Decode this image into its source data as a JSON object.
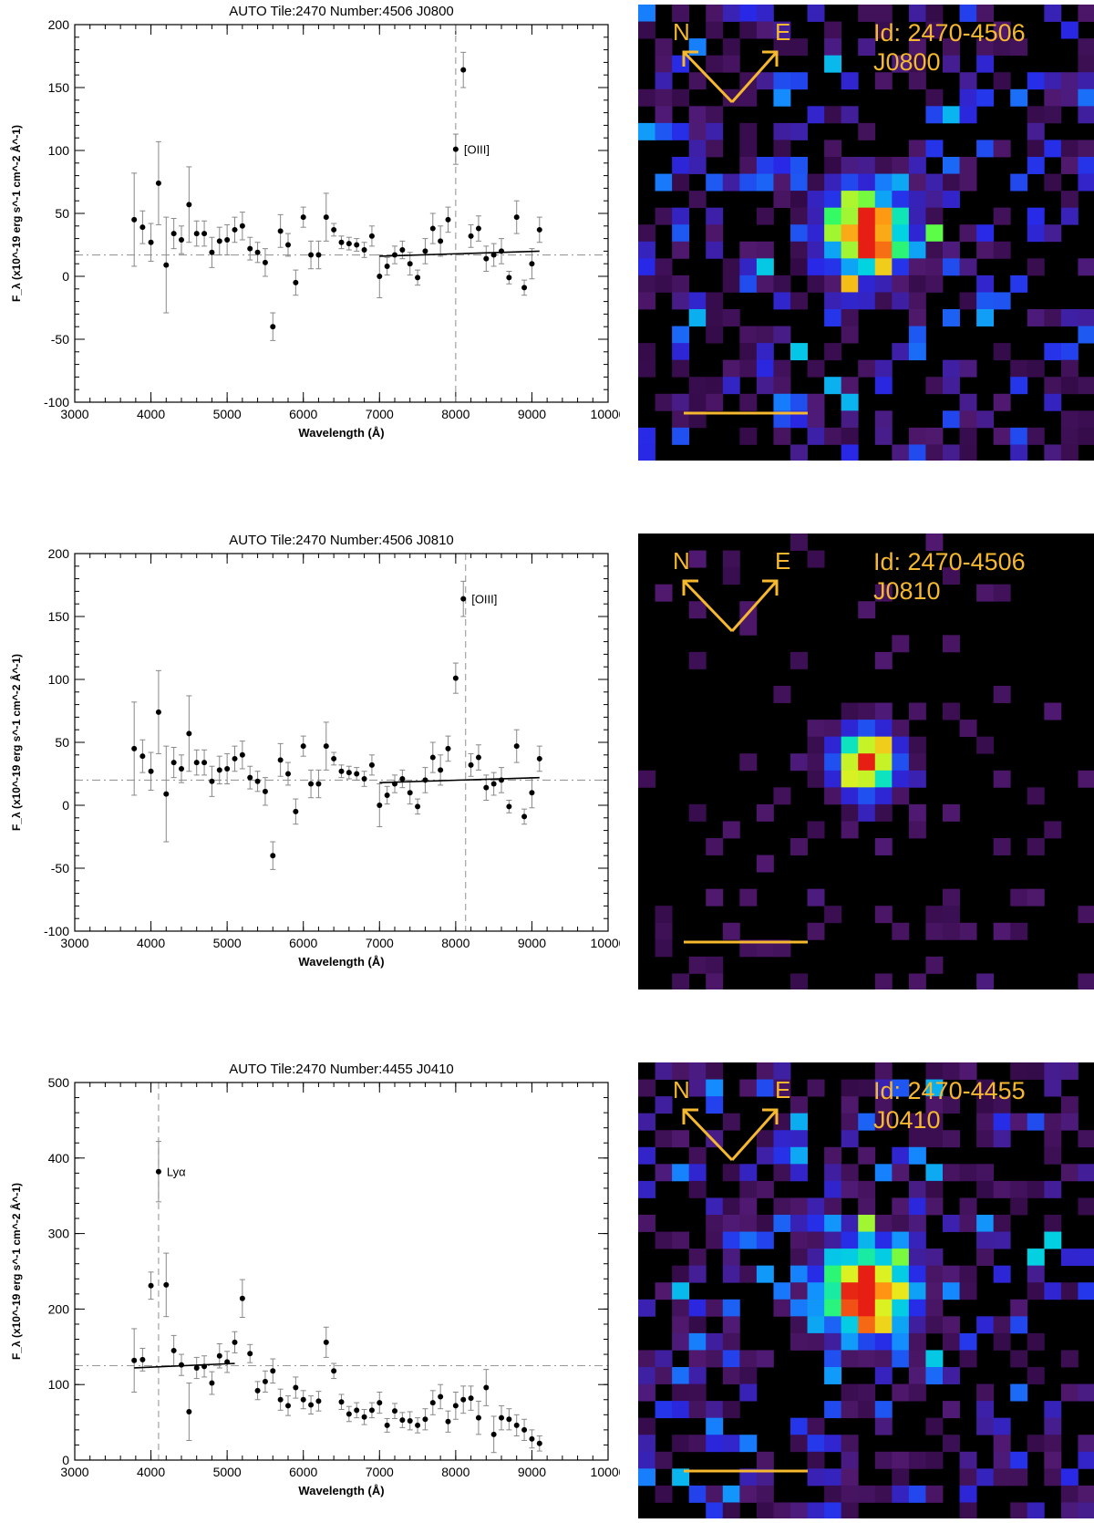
{
  "chart_data": [
    {
      "type": "scatter",
      "title": "AUTO Tile:2470 Number:4506 J0800",
      "xlabel": "Wavelength (Å)",
      "ylabel": "F_λ (x10^-19 erg s^-1 cm^-2 Å^-1)",
      "xlim": [
        3000,
        10000
      ],
      "ylim": [
        -100,
        200
      ],
      "xticks": [
        3000,
        4000,
        5000,
        6000,
        7000,
        8000,
        9000,
        10000
      ],
      "yticks": [
        -100,
        -50,
        0,
        50,
        100,
        150,
        200
      ],
      "line_wavelength": 8000,
      "line_label": "[OIII]",
      "line_label_point": 8000,
      "continuum_level": 17,
      "fit_line": [
        [
          7000,
          16
        ],
        [
          9100,
          20
        ]
      ],
      "points": [
        {
          "x": 3780,
          "y": 45,
          "err": 37
        },
        {
          "x": 3890,
          "y": 39,
          "err": 13
        },
        {
          "x": 4000,
          "y": 27,
          "err": 15
        },
        {
          "x": 4100,
          "y": 74,
          "err": 33
        },
        {
          "x": 4200,
          "y": 9,
          "err": 38
        },
        {
          "x": 4300,
          "y": 34,
          "err": 12
        },
        {
          "x": 4400,
          "y": 29,
          "err": 11
        },
        {
          "x": 4500,
          "y": 57,
          "err": 30
        },
        {
          "x": 4600,
          "y": 34,
          "err": 10
        },
        {
          "x": 4700,
          "y": 34,
          "err": 10
        },
        {
          "x": 4800,
          "y": 19,
          "err": 12
        },
        {
          "x": 4900,
          "y": 28,
          "err": 11
        },
        {
          "x": 5000,
          "y": 29,
          "err": 12
        },
        {
          "x": 5100,
          "y": 37,
          "err": 10
        },
        {
          "x": 5200,
          "y": 40,
          "err": 11
        },
        {
          "x": 5300,
          "y": 22,
          "err": 9
        },
        {
          "x": 5400,
          "y": 19,
          "err": 8
        },
        {
          "x": 5500,
          "y": 11,
          "err": 11
        },
        {
          "x": 5600,
          "y": -40,
          "err": 11
        },
        {
          "x": 5700,
          "y": 36,
          "err": 13
        },
        {
          "x": 5800,
          "y": 25,
          "err": 9
        },
        {
          "x": 5900,
          "y": -5,
          "err": 10
        },
        {
          "x": 6000,
          "y": 47,
          "err": 8
        },
        {
          "x": 6100,
          "y": 17,
          "err": 11
        },
        {
          "x": 6200,
          "y": 17,
          "err": 11
        },
        {
          "x": 6300,
          "y": 47,
          "err": 19
        },
        {
          "x": 6400,
          "y": 37,
          "err": 5
        },
        {
          "x": 6500,
          "y": 27,
          "err": 5
        },
        {
          "x": 6600,
          "y": 26,
          "err": 5
        },
        {
          "x": 6700,
          "y": 25,
          "err": 5
        },
        {
          "x": 6800,
          "y": 21,
          "err": 6
        },
        {
          "x": 6900,
          "y": 32,
          "err": 8
        },
        {
          "x": 7000,
          "y": 0,
          "err": 17
        },
        {
          "x": 7100,
          "y": 8,
          "err": 7
        },
        {
          "x": 7200,
          "y": 17,
          "err": 7
        },
        {
          "x": 7300,
          "y": 21,
          "err": 7
        },
        {
          "x": 7400,
          "y": 10,
          "err": 9
        },
        {
          "x": 7500,
          "y": -1,
          "err": 6
        },
        {
          "x": 7600,
          "y": 20,
          "err": 10
        },
        {
          "x": 7700,
          "y": 38,
          "err": 12
        },
        {
          "x": 7800,
          "y": 28,
          "err": 12
        },
        {
          "x": 7900,
          "y": 45,
          "err": 10
        },
        {
          "x": 8000,
          "y": 101,
          "err": 12
        },
        {
          "x": 8100,
          "y": 164,
          "err": 14
        },
        {
          "x": 8200,
          "y": 32,
          "err": 9
        },
        {
          "x": 8300,
          "y": 38,
          "err": 10
        },
        {
          "x": 8400,
          "y": 14,
          "err": 10
        },
        {
          "x": 8500,
          "y": 17,
          "err": 9
        },
        {
          "x": 8600,
          "y": 20,
          "err": 10
        },
        {
          "x": 8700,
          "y": -1,
          "err": 5
        },
        {
          "x": 8800,
          "y": 47,
          "err": 13
        },
        {
          "x": 8900,
          "y": -9,
          "err": 6
        },
        {
          "x": 9000,
          "y": 10,
          "err": 12
        },
        {
          "x": 9100,
          "y": 37,
          "err": 10
        }
      ]
    },
    {
      "type": "scatter",
      "title": "AUTO Tile:2470 Number:4506 J0810",
      "xlabel": "Wavelength (Å)",
      "ylabel": "F_λ (x10^-19 erg s^-1 cm^-2 Å^-1)",
      "xlim": [
        3000,
        10000
      ],
      "ylim": [
        -100,
        200
      ],
      "xticks": [
        3000,
        4000,
        5000,
        6000,
        7000,
        8000,
        9000,
        10000
      ],
      "yticks": [
        -100,
        -50,
        0,
        50,
        100,
        150,
        200
      ],
      "line_wavelength": 8130,
      "line_label": "[OIII]",
      "line_label_point": 8100,
      "continuum_level": 20,
      "fit_line": [
        [
          7000,
          18
        ],
        [
          9100,
          22
        ]
      ],
      "points": [
        {
          "x": 3780,
          "y": 45,
          "err": 37
        },
        {
          "x": 3890,
          "y": 39,
          "err": 13
        },
        {
          "x": 4000,
          "y": 27,
          "err": 15
        },
        {
          "x": 4100,
          "y": 74,
          "err": 33
        },
        {
          "x": 4200,
          "y": 9,
          "err": 38
        },
        {
          "x": 4300,
          "y": 34,
          "err": 12
        },
        {
          "x": 4400,
          "y": 29,
          "err": 11
        },
        {
          "x": 4500,
          "y": 57,
          "err": 30
        },
        {
          "x": 4600,
          "y": 34,
          "err": 10
        },
        {
          "x": 4700,
          "y": 34,
          "err": 10
        },
        {
          "x": 4800,
          "y": 19,
          "err": 12
        },
        {
          "x": 4900,
          "y": 28,
          "err": 11
        },
        {
          "x": 5000,
          "y": 29,
          "err": 12
        },
        {
          "x": 5100,
          "y": 37,
          "err": 10
        },
        {
          "x": 5200,
          "y": 40,
          "err": 11
        },
        {
          "x": 5300,
          "y": 22,
          "err": 9
        },
        {
          "x": 5400,
          "y": 19,
          "err": 8
        },
        {
          "x": 5500,
          "y": 11,
          "err": 11
        },
        {
          "x": 5600,
          "y": -40,
          "err": 11
        },
        {
          "x": 5700,
          "y": 36,
          "err": 13
        },
        {
          "x": 5800,
          "y": 25,
          "err": 9
        },
        {
          "x": 5900,
          "y": -5,
          "err": 10
        },
        {
          "x": 6000,
          "y": 47,
          "err": 8
        },
        {
          "x": 6100,
          "y": 17,
          "err": 11
        },
        {
          "x": 6200,
          "y": 17,
          "err": 11
        },
        {
          "x": 6300,
          "y": 47,
          "err": 19
        },
        {
          "x": 6400,
          "y": 37,
          "err": 5
        },
        {
          "x": 6500,
          "y": 27,
          "err": 5
        },
        {
          "x": 6600,
          "y": 26,
          "err": 5
        },
        {
          "x": 6700,
          "y": 25,
          "err": 5
        },
        {
          "x": 6800,
          "y": 21,
          "err": 6
        },
        {
          "x": 6900,
          "y": 32,
          "err": 8
        },
        {
          "x": 7000,
          "y": 0,
          "err": 17
        },
        {
          "x": 7100,
          "y": 8,
          "err": 7
        },
        {
          "x": 7200,
          "y": 17,
          "err": 7
        },
        {
          "x": 7300,
          "y": 21,
          "err": 7
        },
        {
          "x": 7400,
          "y": 10,
          "err": 9
        },
        {
          "x": 7500,
          "y": -1,
          "err": 6
        },
        {
          "x": 7600,
          "y": 20,
          "err": 10
        },
        {
          "x": 7700,
          "y": 38,
          "err": 12
        },
        {
          "x": 7800,
          "y": 28,
          "err": 12
        },
        {
          "x": 7900,
          "y": 45,
          "err": 10
        },
        {
          "x": 8000,
          "y": 101,
          "err": 12
        },
        {
          "x": 8100,
          "y": 164,
          "err": 14
        },
        {
          "x": 8200,
          "y": 32,
          "err": 9
        },
        {
          "x": 8300,
          "y": 38,
          "err": 10
        },
        {
          "x": 8400,
          "y": 14,
          "err": 10
        },
        {
          "x": 8500,
          "y": 17,
          "err": 9
        },
        {
          "x": 8600,
          "y": 20,
          "err": 10
        },
        {
          "x": 8700,
          "y": -1,
          "err": 5
        },
        {
          "x": 8800,
          "y": 47,
          "err": 13
        },
        {
          "x": 8900,
          "y": -9,
          "err": 6
        },
        {
          "x": 9000,
          "y": 10,
          "err": 12
        },
        {
          "x": 9100,
          "y": 37,
          "err": 10
        }
      ]
    },
    {
      "type": "scatter",
      "title": "AUTO Tile:2470 Number:4455 J0410",
      "xlabel": "Wavelength (Å)",
      "ylabel": "F_λ (x10^-19 erg s^-1 cm^-2 Å^-1)",
      "xlim": [
        3000,
        10000
      ],
      "ylim": [
        0,
        500
      ],
      "xticks": [
        3000,
        4000,
        5000,
        6000,
        7000,
        8000,
        9000,
        10000
      ],
      "yticks": [
        0,
        100,
        200,
        300,
        400,
        500
      ],
      "line_wavelength": 4100,
      "line_label": "Lyα",
      "line_label_point": 4100,
      "continuum_level": 125,
      "fit_line": [
        [
          3780,
          122
        ],
        [
          5100,
          128
        ]
      ],
      "points": [
        {
          "x": 3780,
          "y": 132,
          "err": 42
        },
        {
          "x": 3890,
          "y": 133,
          "err": 15
        },
        {
          "x": 4000,
          "y": 231,
          "err": 18
        },
        {
          "x": 4100,
          "y": 382,
          "err": 40
        },
        {
          "x": 4200,
          "y": 232,
          "err": 42
        },
        {
          "x": 4300,
          "y": 145,
          "err": 20
        },
        {
          "x": 4400,
          "y": 126,
          "err": 14
        },
        {
          "x": 4500,
          "y": 64,
          "err": 38
        },
        {
          "x": 4600,
          "y": 122,
          "err": 14
        },
        {
          "x": 4700,
          "y": 124,
          "err": 14
        },
        {
          "x": 4800,
          "y": 102,
          "err": 15
        },
        {
          "x": 4900,
          "y": 138,
          "err": 16
        },
        {
          "x": 5000,
          "y": 130,
          "err": 14
        },
        {
          "x": 5100,
          "y": 156,
          "err": 14
        },
        {
          "x": 5200,
          "y": 214,
          "err": 25
        },
        {
          "x": 5300,
          "y": 141,
          "err": 12
        },
        {
          "x": 5400,
          "y": 92,
          "err": 12
        },
        {
          "x": 5500,
          "y": 104,
          "err": 14
        },
        {
          "x": 5600,
          "y": 118,
          "err": 16
        },
        {
          "x": 5700,
          "y": 80,
          "err": 14
        },
        {
          "x": 5800,
          "y": 72,
          "err": 13
        },
        {
          "x": 5900,
          "y": 96,
          "err": 14
        },
        {
          "x": 6000,
          "y": 80,
          "err": 12
        },
        {
          "x": 6100,
          "y": 73,
          "err": 12
        },
        {
          "x": 6200,
          "y": 78,
          "err": 13
        },
        {
          "x": 6300,
          "y": 156,
          "err": 20
        },
        {
          "x": 6400,
          "y": 118,
          "err": 10
        },
        {
          "x": 6500,
          "y": 77,
          "err": 10
        },
        {
          "x": 6600,
          "y": 61,
          "err": 10
        },
        {
          "x": 6700,
          "y": 66,
          "err": 10
        },
        {
          "x": 6800,
          "y": 57,
          "err": 10
        },
        {
          "x": 6900,
          "y": 66,
          "err": 10
        },
        {
          "x": 7000,
          "y": 76,
          "err": 14
        },
        {
          "x": 7100,
          "y": 46,
          "err": 9
        },
        {
          "x": 7200,
          "y": 65,
          "err": 10
        },
        {
          "x": 7300,
          "y": 53,
          "err": 10
        },
        {
          "x": 7400,
          "y": 52,
          "err": 12
        },
        {
          "x": 7500,
          "y": 46,
          "err": 10
        },
        {
          "x": 7600,
          "y": 54,
          "err": 14
        },
        {
          "x": 7700,
          "y": 76,
          "err": 16
        },
        {
          "x": 7800,
          "y": 84,
          "err": 16
        },
        {
          "x": 7900,
          "y": 51,
          "err": 14
        },
        {
          "x": 8000,
          "y": 72,
          "err": 18
        },
        {
          "x": 8100,
          "y": 80,
          "err": 18
        },
        {
          "x": 8200,
          "y": 82,
          "err": 16
        },
        {
          "x": 8300,
          "y": 56,
          "err": 22
        },
        {
          "x": 8400,
          "y": 96,
          "err": 24
        },
        {
          "x": 8500,
          "y": 34,
          "err": 24
        },
        {
          "x": 8600,
          "y": 56,
          "err": 16
        },
        {
          "x": 8700,
          "y": 54,
          "err": 14
        },
        {
          "x": 8800,
          "y": 46,
          "err": 14
        },
        {
          "x": 8900,
          "y": 40,
          "err": 14
        },
        {
          "x": 9000,
          "y": 28,
          "err": 12
        },
        {
          "x": 9100,
          "y": 22,
          "err": 10
        }
      ]
    }
  ],
  "stamps": [
    {
      "compass_n": "N",
      "compass_e": "E",
      "id_label": "Id: 2470-4506",
      "filter_label": "J0800",
      "accent": "#f5b82e",
      "seed": 11,
      "source": {
        "col": 13,
        "row": 13,
        "peak": 1.0,
        "width": 2.0
      }
    },
    {
      "compass_n": "N",
      "compass_e": "E",
      "id_label": "Id: 2470-4506",
      "filter_label": "J0810",
      "accent": "#f5b82e",
      "seed": 37,
      "source": {
        "col": 13,
        "row": 13,
        "peak": 1.0,
        "width": 1.5
      }
    },
    {
      "compass_n": "N",
      "compass_e": "E",
      "id_label": "Id: 2470-4455",
      "filter_label": "J0410",
      "accent": "#f5b82e",
      "seed": 73,
      "source": {
        "col": 13,
        "row": 13,
        "peak": 1.0,
        "width": 2.2
      }
    }
  ]
}
